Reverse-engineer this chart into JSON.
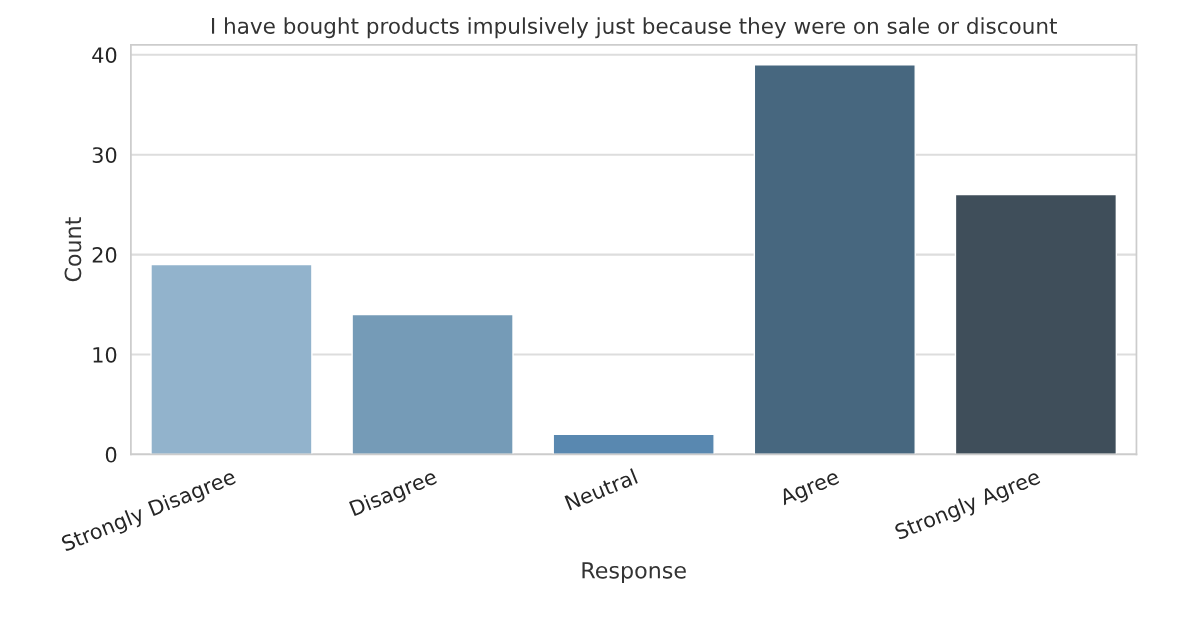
{
  "chart_data": {
    "type": "bar",
    "title": "I have bought products impulsively just because they were on sale or discount",
    "xlabel": "Response",
    "ylabel": "Count",
    "categories": [
      "Strongly Disagree",
      "Disagree",
      "Neutral",
      "Agree",
      "Strongly Agree"
    ],
    "values": [
      19,
      14,
      2,
      39,
      26
    ],
    "colors": [
      "#88b4d6",
      "#6a9cc2",
      "#4a89bf",
      "#3e6888",
      "#3a4e5f"
    ],
    "ylim": [
      0,
      41
    ],
    "yticks": [
      0,
      10,
      20,
      30,
      40
    ],
    "grid": "y"
  }
}
